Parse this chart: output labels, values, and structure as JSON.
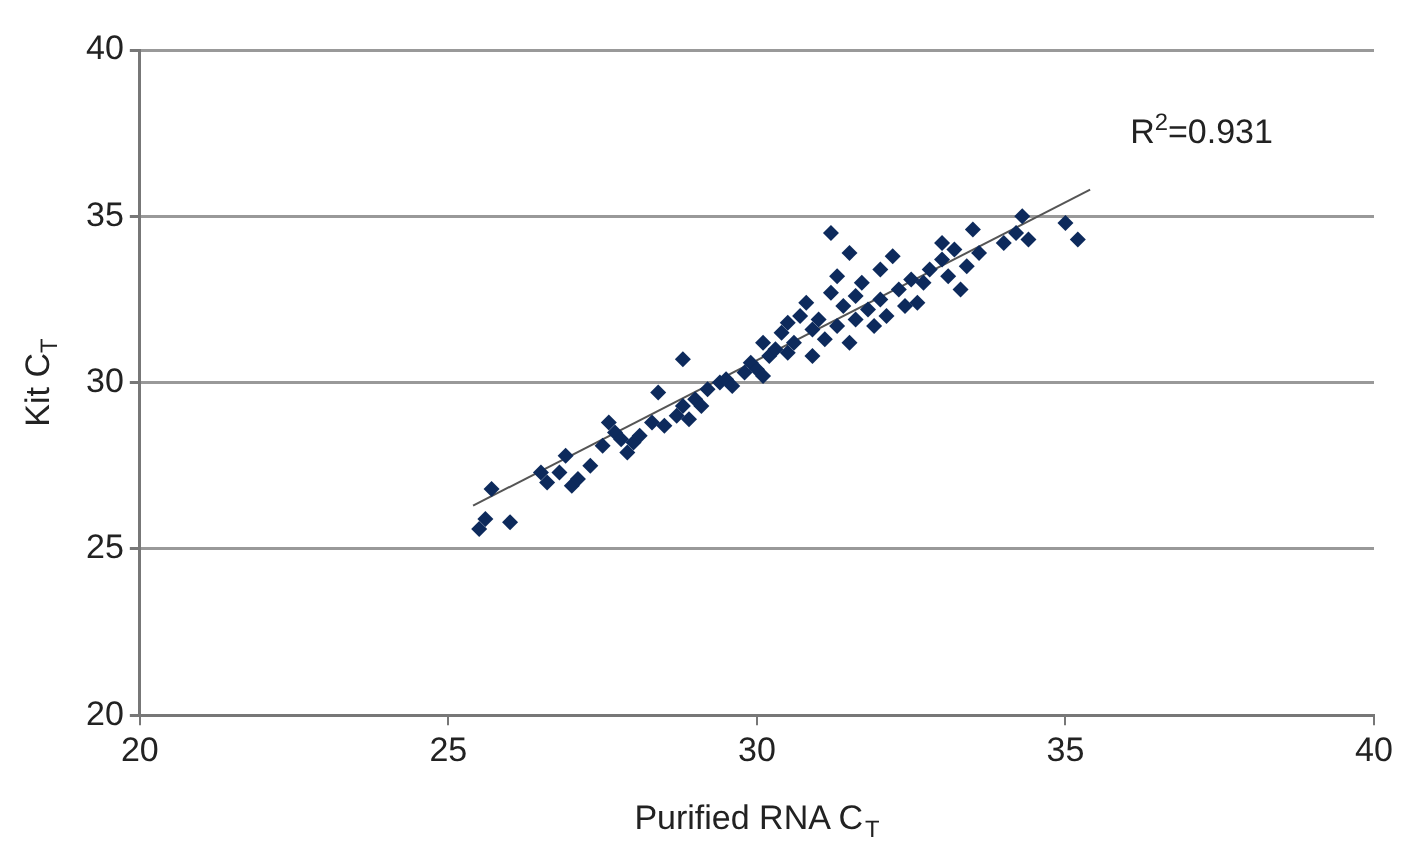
{
  "chart_data": {
    "type": "scatter",
    "xlabel": "Purified RNA C$_{T}$",
    "ylabel": "Kit C$_{T}$",
    "xlim": [
      20,
      40
    ],
    "xticks": [
      20,
      25,
      30,
      35,
      40
    ],
    "ylim": [
      20,
      40
    ],
    "yticks": [
      20,
      25,
      30,
      35,
      40
    ],
    "grid": "y",
    "annotations": [
      "R$^{2}$=0.931"
    ],
    "series": [
      {
        "marker": "diamond",
        "color": "#0d2a5c",
        "x": [
          25.5,
          25.6,
          25.7,
          26.0,
          26.6,
          26.8,
          26.9,
          27.0,
          27.1,
          27.5,
          27.6,
          27.7,
          27.8,
          27.9,
          28.0,
          28.3,
          28.4,
          28.5,
          28.7,
          28.8,
          28.8,
          28.9,
          29.0,
          29.1,
          29.2,
          29.4,
          29.5,
          29.8,
          29.9,
          30.0,
          30.1,
          30.1,
          30.2,
          30.3,
          30.4,
          30.5,
          30.5,
          30.6,
          30.7,
          30.8,
          30.9,
          31.0,
          31.1,
          31.2,
          31.2,
          31.3,
          31.3,
          31.4,
          31.5,
          31.5,
          31.6,
          31.7,
          31.8,
          31.9,
          32.0,
          32.0,
          32.1,
          32.2,
          32.3,
          32.4,
          32.5,
          32.7,
          32.8,
          33.0,
          33.0,
          33.1,
          33.2,
          33.3,
          33.4,
          33.5,
          33.6,
          34.0,
          34.2,
          34.3,
          34.4,
          35.0,
          35.2,
          30.9,
          31.6,
          32.6,
          29.6,
          28.1,
          27.3,
          26.5
        ],
        "values": [
          25.6,
          25.9,
          26.8,
          25.8,
          27.0,
          27.3,
          27.8,
          26.9,
          27.1,
          28.1,
          28.8,
          28.5,
          28.3,
          27.9,
          28.2,
          28.8,
          29.7,
          28.7,
          29.0,
          30.7,
          29.3,
          28.9,
          29.5,
          29.3,
          29.8,
          30.0,
          30.1,
          30.3,
          30.6,
          30.4,
          30.2,
          31.2,
          30.8,
          31.0,
          31.5,
          31.8,
          30.9,
          31.2,
          32.0,
          32.4,
          31.6,
          31.9,
          31.3,
          34.5,
          32.7,
          33.2,
          31.7,
          32.3,
          33.9,
          31.2,
          32.6,
          33.0,
          32.2,
          31.7,
          32.5,
          33.4,
          32.0,
          33.8,
          32.8,
          32.3,
          33.1,
          33.0,
          33.4,
          34.2,
          33.7,
          33.2,
          34.0,
          32.8,
          33.5,
          34.6,
          33.9,
          34.2,
          34.5,
          35.0,
          34.3,
          34.8,
          34.3,
          30.8,
          31.9,
          32.4,
          29.9,
          28.4,
          27.5,
          27.3
        ]
      },
      {
        "type": "line",
        "marker": "none",
        "color": "#555555",
        "x": [
          25.4,
          35.4
        ],
        "values": [
          26.3,
          35.8
        ]
      }
    ]
  }
}
